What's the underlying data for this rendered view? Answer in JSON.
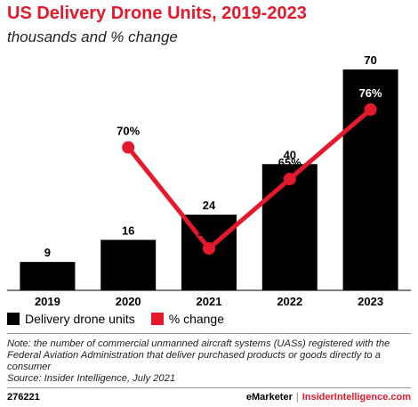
{
  "header": {
    "title": "US Delivery Drone Units, 2019-2023",
    "subtitle": "thousands and % change"
  },
  "colors": {
    "accent": "#e5192b",
    "bar": "#000000",
    "gridline": "#999999"
  },
  "chart_data": {
    "type": "bar",
    "categories": [
      "2019",
      "2020",
      "2021",
      "2022",
      "2023"
    ],
    "series": [
      {
        "name": "Delivery drone units",
        "type": "bar",
        "values": [
          9,
          16,
          24,
          40,
          70
        ],
        "labels": [
          "9",
          "16",
          "24",
          "40",
          "70"
        ],
        "color": "#000000"
      },
      {
        "name": "% change",
        "type": "line",
        "values": [
          null,
          70,
          54,
          65,
          76
        ],
        "labels": [
          "",
          "70%",
          "54%",
          "65%",
          "76%"
        ],
        "color": "#e5192b"
      }
    ],
    "ylim": [
      0,
      70
    ],
    "ylim_line": [
      0,
      76
    ],
    "grid": false,
    "legend": "bottom-left"
  },
  "legend": {
    "bar_label": "Delivery drone units",
    "line_label": "% change"
  },
  "note": "Note: the number of commercial unmanned aircraft systems (UASs) registered with the Federal Aviation Administration that deliver purchased products or goods directly to a consumer",
  "source": "Source: Insider Intelligence, July 2021",
  "footer": {
    "chart_id": "276221",
    "brand1": "eMarketer",
    "separator": "|",
    "brand2": "InsiderIntelligence.com"
  }
}
